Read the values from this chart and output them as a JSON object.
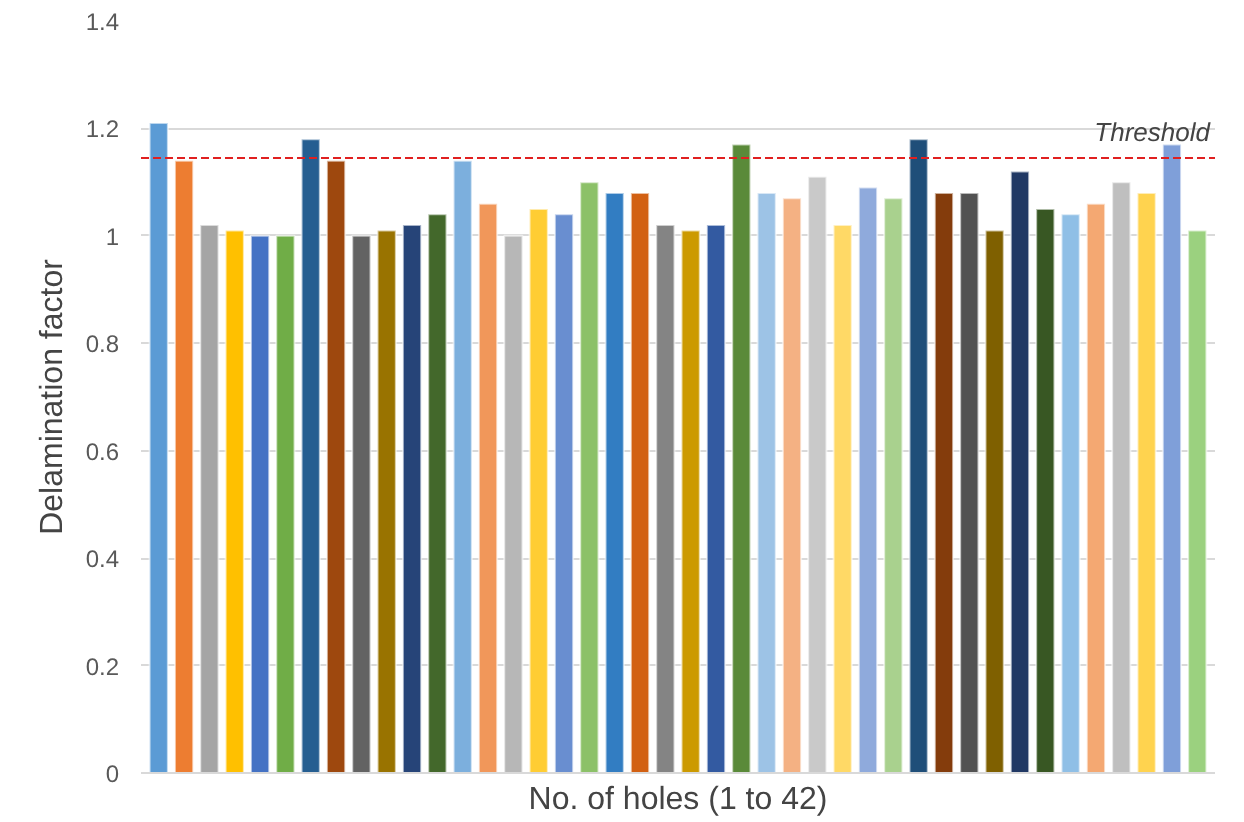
{
  "chart_data": {
    "type": "bar",
    "xlabel": "No. of holes (1 to 42)",
    "ylabel": "Delamination factor",
    "categories": [
      null,
      null,
      null,
      null,
      null,
      null,
      null,
      null,
      null,
      null,
      null,
      null,
      null,
      null,
      null,
      null,
      null,
      null,
      null,
      null,
      null,
      null,
      null,
      null,
      null,
      null,
      null,
      null,
      null,
      null,
      null,
      null,
      null,
      null,
      null,
      null,
      null,
      null,
      null,
      null,
      null,
      null
    ],
    "values": [
      1.21,
      1.14,
      1.02,
      1.01,
      1.0,
      1.0,
      1.18,
      1.14,
      1.0,
      1.01,
      1.02,
      1.04,
      1.14,
      1.06,
      1.0,
      1.05,
      1.04,
      1.1,
      1.08,
      1.08,
      1.02,
      1.01,
      1.02,
      1.17,
      1.08,
      1.07,
      1.11,
      1.02,
      1.09,
      1.07,
      1.18,
      1.08,
      1.08,
      1.01,
      1.12,
      1.05,
      1.04,
      1.06,
      1.1,
      1.08,
      1.17,
      1.01
    ],
    "colors": [
      "#5b9bd5",
      "#ed7d31",
      "#a5a5a5",
      "#ffc000",
      "#4472c4",
      "#70ad47",
      "#255e91",
      "#9e480e",
      "#636363",
      "#997300",
      "#264478",
      "#43682b",
      "#7cafdd",
      "#f1975a",
      "#b7b7b7",
      "#ffcd33",
      "#698ed0",
      "#8cc168",
      "#327dc2",
      "#d26012",
      "#848484",
      "#cc9a00",
      "#335aa1",
      "#5a8a39",
      "#9dc3e6",
      "#f4b183",
      "#c9c9c9",
      "#ffd966",
      "#8faadc",
      "#a9d18e",
      "#1f4e79",
      "#843c0c",
      "#525252",
      "#7f6000",
      "#203864",
      "#385723",
      "#8fbfe6",
      "#f4a872",
      "#bfbfbf",
      "#ffd34f",
      "#7f9fd9",
      "#9bd17f"
    ],
    "ylim": [
      0,
      1.4
    ],
    "yticks": [
      0,
      0.2,
      0.4,
      0.6,
      0.8,
      1,
      1.2,
      1.4
    ],
    "grid": "y",
    "ref_lines": [
      {
        "axis": "y",
        "value": 1.145,
        "label": "Threshold",
        "color": "#e02020",
        "line_style": "dashed"
      }
    ]
  }
}
